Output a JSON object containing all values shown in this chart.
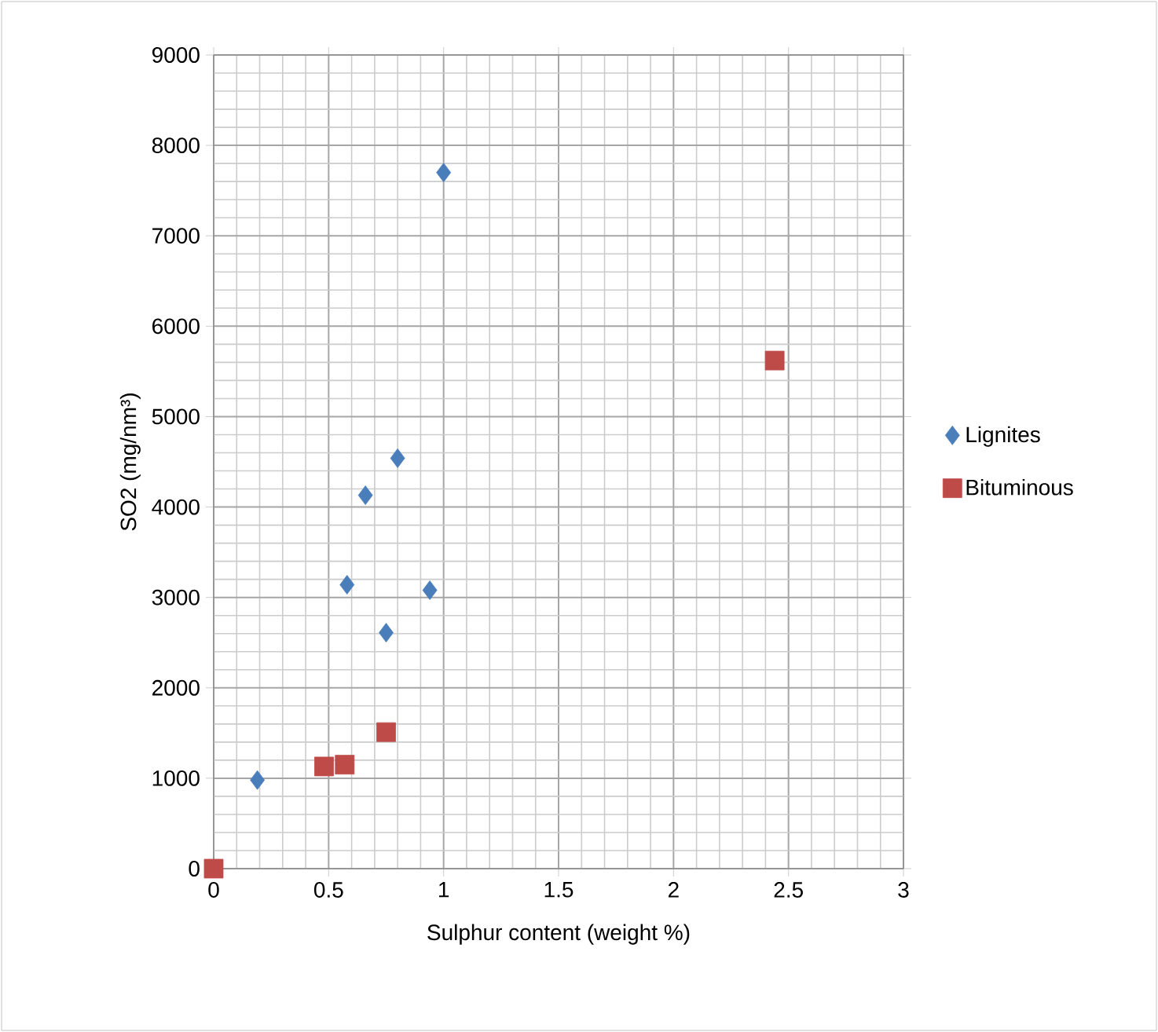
{
  "chart_data": {
    "type": "scatter",
    "xlabel": "Sulphur content (weight %)",
    "ylabel": "SO2 (mg/nm³)",
    "xlim": [
      0,
      3
    ],
    "ylim": [
      0,
      9000
    ],
    "xticks": [
      0,
      0.5,
      1,
      1.5,
      2,
      2.5,
      3
    ],
    "yticks": [
      0,
      1000,
      2000,
      3000,
      4000,
      5000,
      6000,
      7000,
      8000,
      9000
    ],
    "grid": true,
    "legend": "right",
    "series": [
      {
        "name": "Lignites",
        "color": "#4a7ebb",
        "marker": "diamond",
        "x": [
          0.19,
          0.58,
          0.66,
          0.75,
          0.8,
          0.94,
          1.0
        ],
        "values": [
          980,
          3140,
          4130,
          2610,
          4540,
          3080,
          7700
        ]
      },
      {
        "name": "Bituminous",
        "color": "#be4b48",
        "marker": "square",
        "x": [
          0,
          0.48,
          0.57,
          0.75,
          2.44
        ],
        "values": [
          0,
          1130,
          1150,
          1510,
          5620
        ]
      }
    ]
  }
}
